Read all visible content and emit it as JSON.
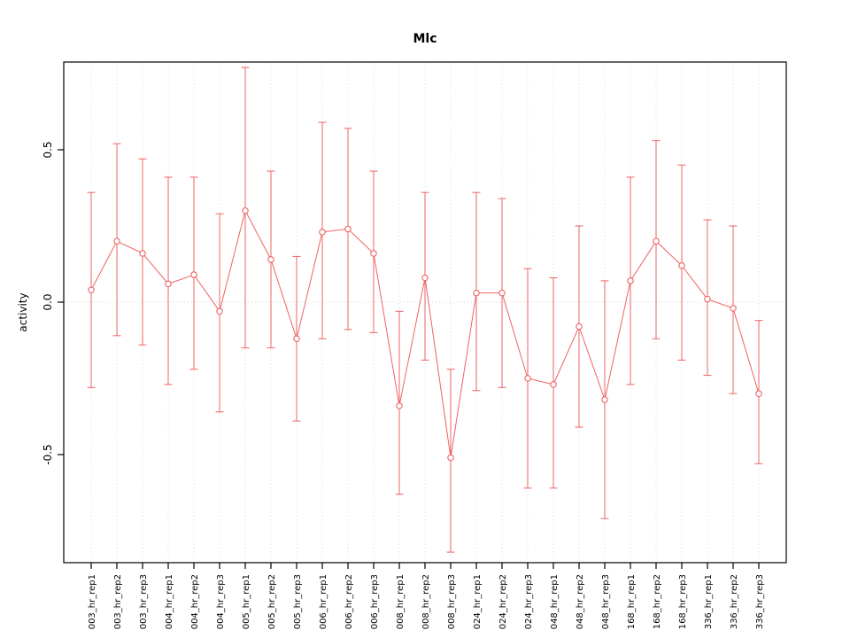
{
  "chart_data": {
    "type": "line",
    "title": "Mlc",
    "xlabel": "",
    "ylabel": "activity",
    "ylim": [
      -0.85,
      0.79
    ],
    "yticks": {
      "values": [
        0.5,
        0.0,
        -0.5
      ],
      "labels": [
        "0.5",
        "0.0",
        "-0.5"
      ]
    },
    "grid": {
      "vertical_dotted": true,
      "zero_line_dotted": true
    },
    "legend_position": "none",
    "point_style": "open-circle-with-error-bars",
    "categories": [
      "003_hr_rep1",
      "003_hr_rep2",
      "003_hr_rep3",
      "004_hr_rep1",
      "004_hr_rep2",
      "004_hr_rep3",
      "005_hr_rep1",
      "005_hr_rep2",
      "005_hr_rep3",
      "006_hr_rep1",
      "006_hr_rep2",
      "006_hr_rep3",
      "008_hr_rep1",
      "008_hr_rep2",
      "008_hr_rep3",
      "024_hr_rep1",
      "024_hr_rep2",
      "024_hr_rep3",
      "048_hr_rep1",
      "048_hr_rep2",
      "048_hr_rep3",
      "168_hr_rep1",
      "168_hr_rep2",
      "168_hr_rep3",
      "336_hr_rep1",
      "336_hr_rep2",
      "336_hr_rep3"
    ],
    "series": [
      {
        "name": "activity",
        "values": [
          0.04,
          0.2,
          0.16,
          0.06,
          0.09,
          -0.03,
          0.3,
          0.14,
          -0.12,
          0.23,
          0.24,
          0.16,
          -0.34,
          0.08,
          -0.51,
          0.03,
          0.03,
          -0.25,
          -0.27,
          -0.08,
          -0.32,
          0.07,
          0.2,
          0.12,
          0.01,
          -0.02,
          -0.3
        ],
        "upper": [
          0.36,
          0.52,
          0.47,
          0.41,
          0.41,
          0.29,
          0.77,
          0.43,
          0.15,
          0.59,
          0.57,
          0.43,
          -0.03,
          0.36,
          -0.22,
          0.36,
          0.34,
          0.11,
          0.08,
          0.25,
          0.07,
          0.41,
          0.53,
          0.45,
          0.27,
          0.25,
          -0.06
        ],
        "lower": [
          -0.28,
          -0.11,
          -0.14,
          -0.27,
          -0.22,
          -0.36,
          -0.15,
          -0.15,
          -0.39,
          -0.12,
          -0.09,
          -0.1,
          -0.63,
          -0.19,
          -0.82,
          -0.29,
          -0.28,
          -0.61,
          -0.61,
          -0.41,
          -0.71,
          -0.27,
          -0.12,
          -0.19,
          -0.24,
          -0.3,
          -0.53
        ]
      }
    ],
    "colors": {
      "series": "#ee6363",
      "zero_line": "#f0c8c8",
      "vertical_grid": "#dddddd",
      "axis": "#000000",
      "background": "#ffffff"
    }
  }
}
